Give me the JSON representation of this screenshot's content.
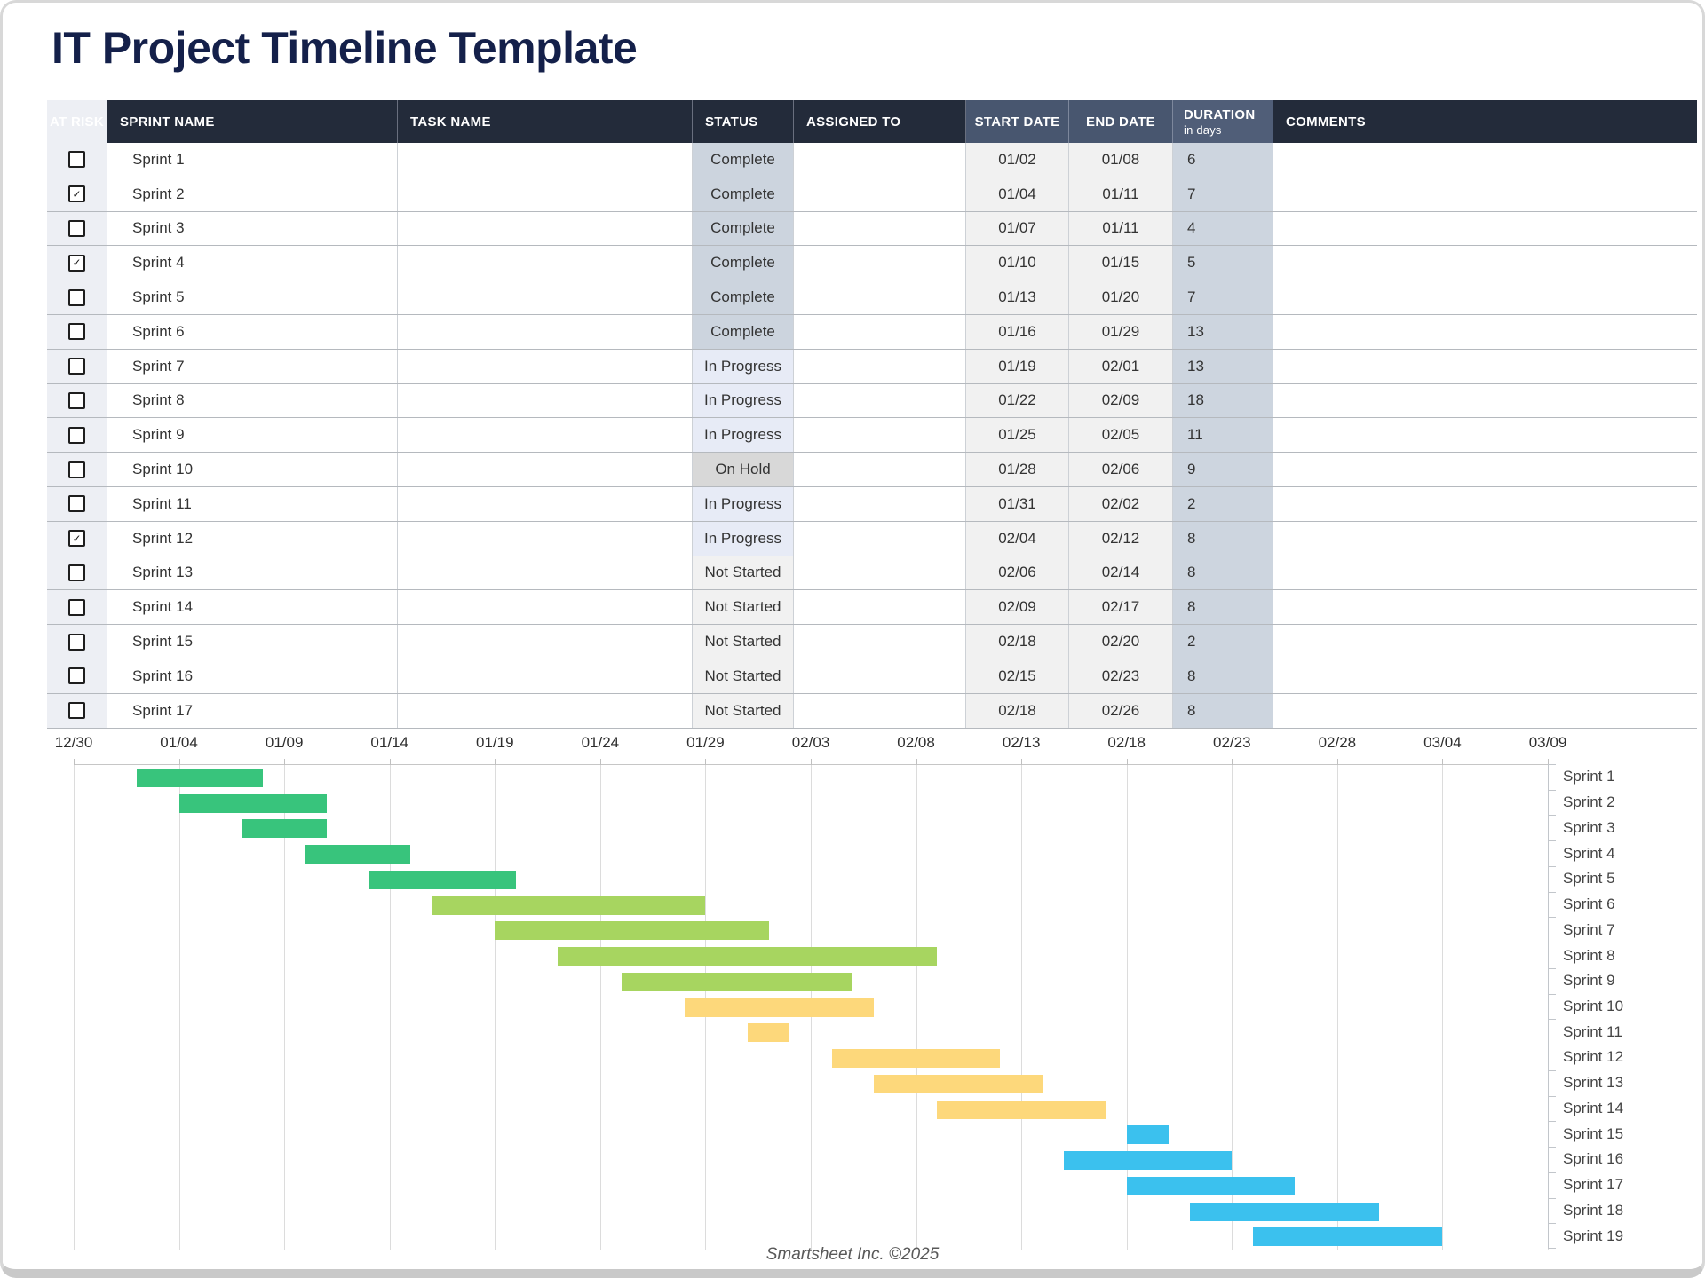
{
  "page": {
    "title": "IT Project Timeline Template",
    "footer": "Smartsheet Inc. ©2025"
  },
  "table": {
    "columns": [
      "AT RISK",
      "SPRINT NAME",
      "TASK NAME",
      "STATUS",
      "ASSIGNED TO",
      "START DATE",
      "END DATE",
      "DURATION",
      "COMMENTS"
    ],
    "duration_sublabel": "in days",
    "status_styles": {
      "Complete": "#CCD4DE",
      "In Progress": "#E7EBF6",
      "On Hold": "#D8D8D8",
      "Not Started": "#F1F1F1"
    },
    "rows": [
      {
        "at_risk": false,
        "sprint": "Sprint 1",
        "task": "",
        "status": "Complete",
        "assigned": "",
        "start": "01/02",
        "end": "01/08",
        "duration": "6",
        "comments": ""
      },
      {
        "at_risk": true,
        "sprint": "Sprint 2",
        "task": "",
        "status": "Complete",
        "assigned": "",
        "start": "01/04",
        "end": "01/11",
        "duration": "7",
        "comments": ""
      },
      {
        "at_risk": false,
        "sprint": "Sprint 3",
        "task": "",
        "status": "Complete",
        "assigned": "",
        "start": "01/07",
        "end": "01/11",
        "duration": "4",
        "comments": ""
      },
      {
        "at_risk": true,
        "sprint": "Sprint 4",
        "task": "",
        "status": "Complete",
        "assigned": "",
        "start": "01/10",
        "end": "01/15",
        "duration": "5",
        "comments": ""
      },
      {
        "at_risk": false,
        "sprint": "Sprint 5",
        "task": "",
        "status": "Complete",
        "assigned": "",
        "start": "01/13",
        "end": "01/20",
        "duration": "7",
        "comments": ""
      },
      {
        "at_risk": false,
        "sprint": "Sprint 6",
        "task": "",
        "status": "Complete",
        "assigned": "",
        "start": "01/16",
        "end": "01/29",
        "duration": "13",
        "comments": ""
      },
      {
        "at_risk": false,
        "sprint": "Sprint 7",
        "task": "",
        "status": "In Progress",
        "assigned": "",
        "start": "01/19",
        "end": "02/01",
        "duration": "13",
        "comments": ""
      },
      {
        "at_risk": false,
        "sprint": "Sprint 8",
        "task": "",
        "status": "In Progress",
        "assigned": "",
        "start": "01/22",
        "end": "02/09",
        "duration": "18",
        "comments": ""
      },
      {
        "at_risk": false,
        "sprint": "Sprint 9",
        "task": "",
        "status": "In Progress",
        "assigned": "",
        "start": "01/25",
        "end": "02/05",
        "duration": "11",
        "comments": ""
      },
      {
        "at_risk": false,
        "sprint": "Sprint 10",
        "task": "",
        "status": "On Hold",
        "assigned": "",
        "start": "01/28",
        "end": "02/06",
        "duration": "9",
        "comments": ""
      },
      {
        "at_risk": false,
        "sprint": "Sprint 11",
        "task": "",
        "status": "In Progress",
        "assigned": "",
        "start": "01/31",
        "end": "02/02",
        "duration": "2",
        "comments": ""
      },
      {
        "at_risk": true,
        "sprint": "Sprint 12",
        "task": "",
        "status": "In Progress",
        "assigned": "",
        "start": "02/04",
        "end": "02/12",
        "duration": "8",
        "comments": ""
      },
      {
        "at_risk": false,
        "sprint": "Sprint 13",
        "task": "",
        "status": "Not Started",
        "assigned": "",
        "start": "02/06",
        "end": "02/14",
        "duration": "8",
        "comments": ""
      },
      {
        "at_risk": false,
        "sprint": "Sprint 14",
        "task": "",
        "status": "Not Started",
        "assigned": "",
        "start": "02/09",
        "end": "02/17",
        "duration": "8",
        "comments": ""
      },
      {
        "at_risk": false,
        "sprint": "Sprint 15",
        "task": "",
        "status": "Not Started",
        "assigned": "",
        "start": "02/18",
        "end": "02/20",
        "duration": "2",
        "comments": ""
      },
      {
        "at_risk": false,
        "sprint": "Sprint 16",
        "task": "",
        "status": "Not Started",
        "assigned": "",
        "start": "02/15",
        "end": "02/23",
        "duration": "8",
        "comments": ""
      },
      {
        "at_risk": false,
        "sprint": "Sprint 17",
        "task": "",
        "status": "Not Started",
        "assigned": "",
        "start": "02/18",
        "end": "02/26",
        "duration": "8",
        "comments": ""
      }
    ]
  },
  "chart_data": {
    "type": "bar",
    "variant": "gantt",
    "title": "",
    "x_ticks": [
      "12/30",
      "01/04",
      "01/09",
      "01/14",
      "01/19",
      "01/24",
      "01/29",
      "02/03",
      "02/08",
      "02/13",
      "02/18",
      "02/23",
      "02/28",
      "03/04",
      "03/09"
    ],
    "tick_interval_days": 5,
    "axis_total_days": 70,
    "axis_start_date": "12/30",
    "axis_end_date": "03/09",
    "grid": true,
    "legend": "none",
    "palette": {
      "green": "#38C47C",
      "light_green": "#A7D560",
      "yellow": "#FDD87B",
      "blue": "#3BC1EE"
    },
    "rows": [
      {
        "label": "Sprint 1",
        "start": "01/02",
        "end": "01/08",
        "color": "green"
      },
      {
        "label": "Sprint 2",
        "start": "01/04",
        "end": "01/11",
        "color": "green"
      },
      {
        "label": "Sprint 3",
        "start": "01/07",
        "end": "01/11",
        "color": "green"
      },
      {
        "label": "Sprint 4",
        "start": "01/10",
        "end": "01/15",
        "color": "green"
      },
      {
        "label": "Sprint 5",
        "start": "01/13",
        "end": "01/20",
        "color": "green"
      },
      {
        "label": "Sprint 6",
        "start": "01/16",
        "end": "01/29",
        "color": "light_green"
      },
      {
        "label": "Sprint 7",
        "start": "01/19",
        "end": "02/01",
        "color": "light_green"
      },
      {
        "label": "Sprint 8",
        "start": "01/22",
        "end": "02/09",
        "color": "light_green"
      },
      {
        "label": "Sprint 9",
        "start": "01/25",
        "end": "02/05",
        "color": "light_green"
      },
      {
        "label": "Sprint 10",
        "start": "01/28",
        "end": "02/06",
        "color": "yellow"
      },
      {
        "label": "Sprint 11",
        "start": "01/31",
        "end": "02/02",
        "color": "yellow"
      },
      {
        "label": "Sprint 12",
        "start": "02/04",
        "end": "02/12",
        "color": "yellow"
      },
      {
        "label": "Sprint 13",
        "start": "02/06",
        "end": "02/14",
        "color": "yellow"
      },
      {
        "label": "Sprint 14",
        "start": "02/09",
        "end": "02/17",
        "color": "yellow"
      },
      {
        "label": "Sprint 15",
        "start": "02/18",
        "end": "02/20",
        "color": "blue"
      },
      {
        "label": "Sprint 16",
        "start": "02/15",
        "end": "02/23",
        "color": "blue"
      },
      {
        "label": "Sprint 17",
        "start": "02/18",
        "end": "02/26",
        "color": "blue"
      },
      {
        "label": "Sprint 18",
        "start": "02/21",
        "end": "03/01",
        "color": "blue"
      },
      {
        "label": "Sprint 19",
        "start": "02/24",
        "end": "03/04",
        "color": "blue"
      }
    ]
  }
}
